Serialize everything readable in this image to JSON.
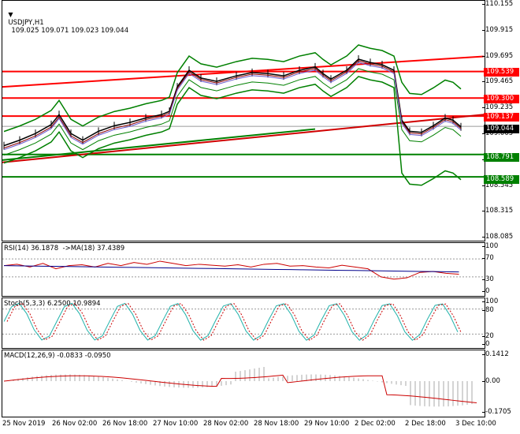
{
  "header": {
    "symbol_tf": "USDJPY,H1",
    "ohlc": "109.025 109.071 109.023 109.044",
    "menu_arrow": "triangle-down"
  },
  "price_axis": {
    "ticks": [
      "110.155",
      "109.915",
      "109.695",
      "109.465",
      "109.235",
      "109.005",
      "108.775",
      "108.545",
      "108.315",
      "108.085"
    ]
  },
  "levels": [
    {
      "label": "109.539",
      "value": 109.539,
      "color": "#ff0000"
    },
    {
      "label": "109.300",
      "value": 109.3,
      "color": "#ff0000"
    },
    {
      "label": "109.137",
      "value": 109.137,
      "color": "#ff0000"
    },
    {
      "label": "109.044",
      "value": 109.044,
      "color": "#000000"
    },
    {
      "label": "108.791",
      "value": 108.791,
      "color": "#008000"
    },
    {
      "label": "108.589",
      "value": 108.589,
      "color": "#008000"
    }
  ],
  "rsi": {
    "label": "RSI(14) 36.1878  ->MA(18) 37.4389",
    "ticks": [
      "100",
      "70",
      "30",
      "0"
    ]
  },
  "stoch": {
    "label": "Stoch(5,3,3) 6.2500 10.9894",
    "ticks": [
      "100",
      "80",
      "20",
      "0"
    ]
  },
  "macd": {
    "label": "MACD(12,26,9) -0.0833 -0.0950",
    "ticks": [
      "0.1412",
      "0.00",
      "-0.1705"
    ]
  },
  "time_axis": [
    "25 Nov 2019",
    "26 Nov 02:00",
    "26 Nov 18:00",
    "27 Nov 10:00",
    "28 Nov 02:00",
    "28 Nov 18:00",
    "29 Nov 10:00",
    "2 Dec 02:00",
    "2 Dec 18:00",
    "3 Dec 10:00"
  ],
  "colors": {
    "resistance": "#ff0000",
    "support": "#008000",
    "bands": "#008000",
    "macd_signal": "#cc0000",
    "rsi_ma": "#00008b"
  }
}
